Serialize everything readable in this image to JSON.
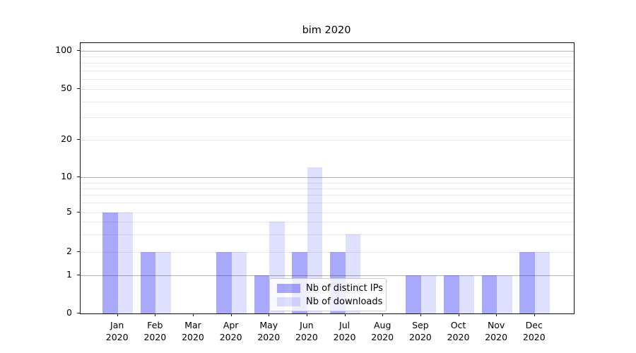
{
  "title": "bim 2020",
  "chart_data": {
    "type": "bar",
    "title": "bim 2020",
    "categories": [
      "Jan 2020",
      "Feb 2020",
      "Mar 2020",
      "Apr 2020",
      "May 2020",
      "Jun 2020",
      "Jul 2020",
      "Aug 2020",
      "Sep 2020",
      "Oct 2020",
      "Nov 2020",
      "Dec 2020"
    ],
    "x_tick_line1": [
      "Jan",
      "Feb",
      "Mar",
      "Apr",
      "May",
      "Jun",
      "Jul",
      "Aug",
      "Sep",
      "Oct",
      "Nov",
      "Dec"
    ],
    "x_tick_line2": "2020",
    "series": [
      {
        "name": "Nb of distinct IPs",
        "color": "rgba(30,30,245,0.38)",
        "color_on_white": "#aaaafb",
        "values": [
          5,
          2,
          0,
          2,
          1,
          2,
          2,
          0,
          1,
          1,
          1,
          2
        ]
      },
      {
        "name": "Nb of downloads",
        "color": "rgba(30,30,245,0.14)",
        "color_on_white": "#dcdcfd",
        "values": [
          5,
          2,
          0,
          2,
          4,
          12,
          3,
          0,
          1,
          1,
          1,
          2
        ]
      }
    ],
    "y_axis": {
      "scale": "symlog",
      "tick_labels": [
        0,
        1,
        2,
        5,
        10,
        20,
        50,
        100
      ],
      "minor_gridline_values": [
        2,
        3,
        4,
        5,
        6,
        7,
        8,
        9,
        20,
        30,
        40,
        50,
        60,
        70,
        80,
        90
      ],
      "major_gridline_values": [
        1,
        10,
        100
      ],
      "ylim_bottom": 0
    },
    "grid": "horizontal",
    "legend": {
      "position": "inside-bottom-center",
      "labels": [
        "Nb of distinct IPs",
        "Nb of downloads"
      ]
    }
  },
  "colors": {
    "bar_distinct_ips": "#aaaafb",
    "bar_downloads": "#dcdcfd",
    "grid_major": "#b4b4b4",
    "grid_minor": "#e9e9e9",
    "axis_frame": "#111111",
    "legend_border": "#cccccc",
    "legend_background": "#ffffff",
    "text": "#000000"
  }
}
